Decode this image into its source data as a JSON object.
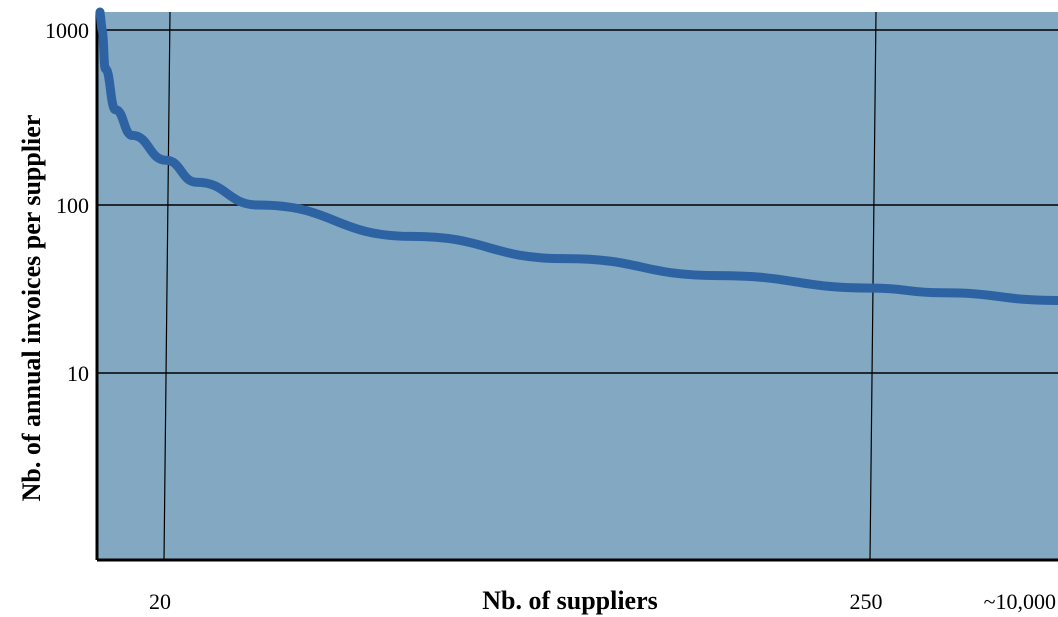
{
  "chart_data": {
    "type": "line",
    "title": "",
    "xlabel": "Nb. of suppliers",
    "ylabel": "Nb. of annual invoices per supplier",
    "y_scale": "log",
    "ylim": [
      1,
      1000
    ],
    "y_ticks": [
      {
        "value": 10,
        "label": "10"
      },
      {
        "value": 100,
        "label": "100"
      },
      {
        "value": 1000,
        "label": "1000"
      }
    ],
    "x_ticks": [
      {
        "value": 20,
        "label": "20"
      },
      {
        "value": 250,
        "label": "250"
      },
      {
        "value": 10000,
        "label": "~10,000"
      }
    ],
    "grid": true,
    "colors": {
      "plot_background": "#82a8c2",
      "line": "#2e63a3",
      "grid": "#000000"
    },
    "series": [
      {
        "points": [
          {
            "x": 1,
            "y": 1000
          },
          {
            "x": 2,
            "y": 600
          },
          {
            "x": 5,
            "y": 350
          },
          {
            "x": 10,
            "y": 250
          },
          {
            "x": 20,
            "y": 180
          },
          {
            "x": 30,
            "y": 135
          },
          {
            "x": 50,
            "y": 100
          },
          {
            "x": 100,
            "y": 65
          },
          {
            "x": 150,
            "y": 48
          },
          {
            "x": 200,
            "y": 38
          },
          {
            "x": 250,
            "y": 32
          },
          {
            "x": 1000,
            "y": 30
          },
          {
            "x": 10000,
            "y": 27
          }
        ]
      }
    ]
  }
}
